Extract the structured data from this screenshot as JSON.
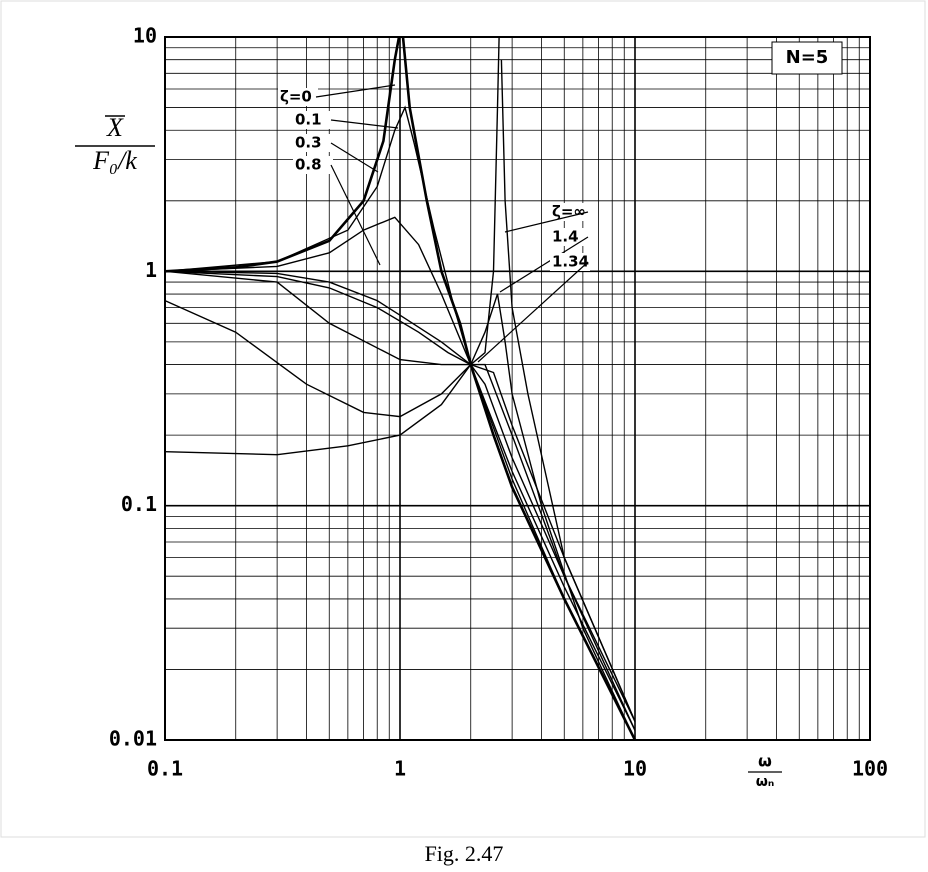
{
  "chart_data": {
    "type": "line",
    "log_x": true,
    "log_y": true,
    "grid": true,
    "annotation": "N=5",
    "y_label": {
      "numerator": "X",
      "denominator": "F₀/k"
    },
    "x_label": {
      "numerator": "ω",
      "denominator": "ωₙ"
    },
    "xlim": [
      0.1,
      100
    ],
    "ylim": [
      0.01,
      10
    ],
    "xticks": [
      0.1,
      1,
      10,
      100
    ],
    "yticks": [
      0.01,
      0.1,
      1,
      10
    ],
    "series": [
      {
        "name": "ζ=0",
        "color": "#000000",
        "x": [
          0.1,
          0.2,
          0.3,
          0.5,
          0.7,
          0.85,
          0.95,
          0.99,
          1.0,
          1.03,
          1.1,
          1.3,
          1.5,
          1.8,
          2,
          2.5,
          3,
          5,
          10
        ],
        "values": [
          1,
          1.04,
          1.1,
          1.35,
          2,
          3.6,
          8,
          10,
          null,
          10,
          5,
          2,
          1,
          0.6,
          0.4,
          0.2,
          0.12,
          0.04,
          0.01
        ]
      },
      {
        "name": "0.1",
        "color": "#000000",
        "x": [
          0.1,
          0.3,
          0.6,
          0.8,
          0.95,
          1.05,
          1.15,
          1.4,
          1.7,
          2,
          3,
          5,
          10
        ],
        "values": [
          1,
          1.1,
          1.5,
          2.3,
          4,
          5,
          3.5,
          1.5,
          0.7,
          0.4,
          0.13,
          0.04,
          0.01
        ]
      },
      {
        "name": "0.3",
        "color": "#000000",
        "x": [
          0.1,
          0.3,
          0.5,
          0.7,
          0.95,
          1.2,
          1.5,
          2,
          3,
          5,
          10
        ],
        "values": [
          1,
          1.05,
          1.2,
          1.5,
          1.7,
          1.3,
          0.8,
          0.4,
          0.14,
          0.045,
          0.011
        ]
      },
      {
        "name": "0.8",
        "color": "#000000",
        "x": [
          0.1,
          0.3,
          0.5,
          0.8,
          1,
          1.5,
          2,
          2.3,
          3,
          5,
          10
        ],
        "values": [
          1,
          0.98,
          0.9,
          0.75,
          0.65,
          0.5,
          0.4,
          0.33,
          0.16,
          0.05,
          0.012
        ]
      },
      {
        "name": "ζ=∞",
        "color": "#000000",
        "x": [
          0.1,
          0.3,
          0.5,
          0.8,
          1.2,
          1.6,
          2,
          2.3,
          2.5,
          2.6,
          2.64,
          2.66,
          2.7,
          2.8,
          3,
          3.5,
          5,
          10
        ],
        "values": [
          1,
          0.95,
          0.85,
          0.7,
          0.55,
          0.45,
          0.4,
          0.45,
          1,
          5,
          10,
          null,
          8,
          2,
          0.7,
          0.3,
          0.06,
          0.012
        ]
      },
      {
        "name": "1.4",
        "color": "#000000",
        "x": [
          0.1,
          0.3,
          0.5,
          1,
          1.5,
          2,
          2.3,
          2.6,
          2.8,
          3,
          4,
          6,
          10
        ],
        "values": [
          1,
          0.9,
          0.6,
          0.42,
          0.4,
          0.4,
          0.55,
          0.8,
          0.5,
          0.3,
          0.1,
          0.03,
          0.01
        ]
      },
      {
        "name": "1.34",
        "color": "#000000",
        "x": [
          0.1,
          0.2,
          0.4,
          0.7,
          1,
          1.5,
          2,
          2.3,
          3,
          5,
          10
        ],
        "values": [
          0.75,
          0.55,
          0.33,
          0.25,
          0.24,
          0.3,
          0.4,
          0.4,
          0.2,
          0.05,
          0.011
        ]
      },
      {
        "color": "#000000",
        "x": [
          0.1,
          0.3,
          0.6,
          1,
          1.5,
          2,
          2.5,
          3,
          5,
          10
        ],
        "values": [
          0.17,
          0.165,
          0.18,
          0.2,
          0.27,
          0.4,
          0.37,
          0.22,
          0.06,
          0.012
        ]
      }
    ]
  },
  "caption": "Fig. 2.47"
}
